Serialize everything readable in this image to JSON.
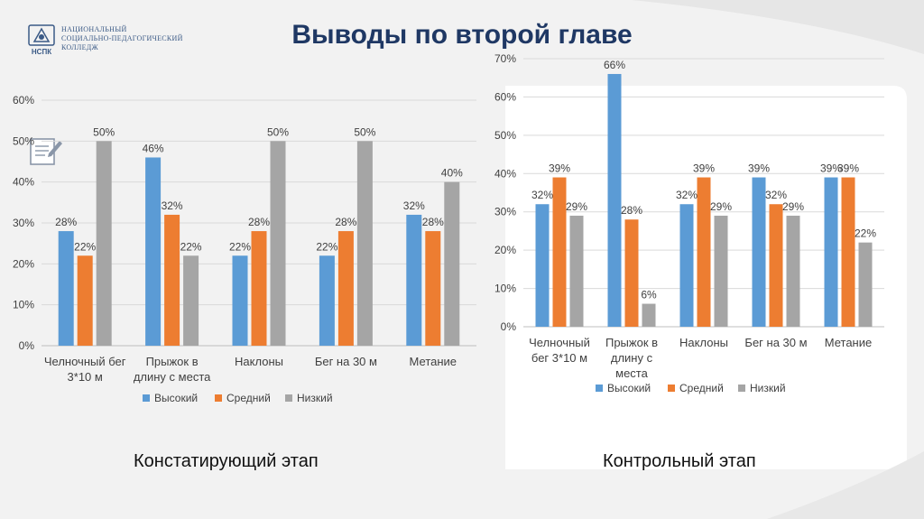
{
  "title": "Выводы по второй главе",
  "logo": {
    "abbr": "НСПК",
    "line1": "НАЦИОНАЛЬНЫЙ",
    "line2": "СОЦИАЛЬНО-ПЕДАГОГИЧЕСКИЙ",
    "line3": "КОЛЛЕДЖ"
  },
  "captions": {
    "left": "Констатирующий этап",
    "right": "Контрольный этап"
  },
  "colors": {
    "high": "#5b9bd5",
    "medium": "#ed7d31",
    "low": "#a5a5a5",
    "title": "#1f3864"
  },
  "chart_data": [
    {
      "type": "bar",
      "categories": [
        [
          "Челночный бег",
          "3*10 м"
        ],
        [
          "Прыжок в",
          "длину с места"
        ],
        [
          "Наклоны"
        ],
        [
          "Бег на 30 м"
        ],
        [
          "Метание"
        ]
      ],
      "series": [
        {
          "name": "Высокий",
          "values": [
            28,
            46,
            22,
            22,
            32
          ]
        },
        {
          "name": "Средний",
          "values": [
            22,
            32,
            28,
            28,
            28
          ]
        },
        {
          "name": "Низкий",
          "values": [
            50,
            22,
            50,
            50,
            40
          ]
        }
      ],
      "ylim": [
        0,
        60
      ],
      "yticks": [
        0,
        10,
        20,
        30,
        40,
        50,
        60
      ],
      "value_suffix": "%",
      "legend_position": "bottom",
      "grid": true
    },
    {
      "type": "bar",
      "categories": [
        [
          "Челночный",
          "бег 3*10 м"
        ],
        [
          "Прыжок в",
          "длину с",
          "места"
        ],
        [
          "Наклоны"
        ],
        [
          "Бег на 30 м"
        ],
        [
          "Метание"
        ]
      ],
      "series": [
        {
          "name": "Высокий",
          "values": [
            32,
            66,
            32,
            39,
            39
          ]
        },
        {
          "name": "Средний",
          "values": [
            39,
            28,
            39,
            32,
            39
          ]
        },
        {
          "name": "Низкий",
          "values": [
            29,
            6,
            29,
            29,
            22
          ]
        }
      ],
      "ylim": [
        0,
        70
      ],
      "yticks": [
        0,
        10,
        20,
        30,
        40,
        50,
        60,
        70
      ],
      "value_suffix": "%",
      "legend_position": "bottom",
      "grid": true
    }
  ]
}
